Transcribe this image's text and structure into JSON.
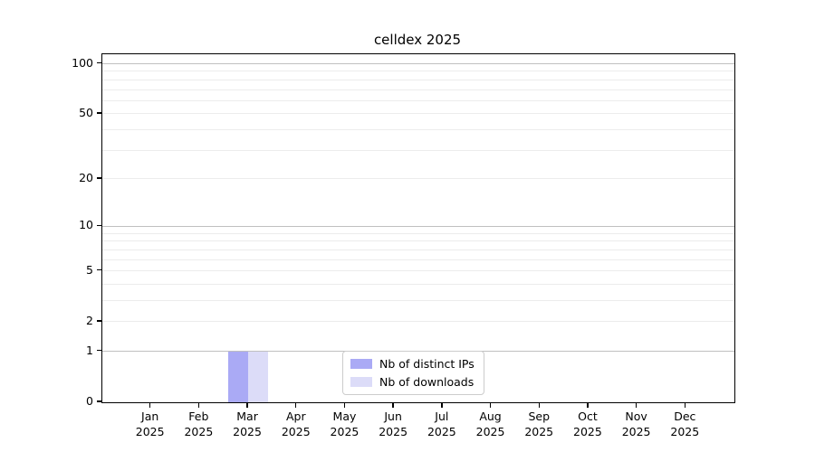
{
  "title": "celldex 2025",
  "colors": {
    "distinct_ips": "#aaaaf5",
    "downloads": "#dcdcf8",
    "grid_major": "#c0c0c0",
    "grid_minor": "#ececec",
    "axis": "#000000",
    "legend_border": "#cccccc",
    "background": "#ffffff"
  },
  "chart_data": {
    "type": "bar",
    "title": "celldex 2025",
    "xlabel": "",
    "ylabel": "",
    "scale": "log10(value+1)",
    "categories": [
      "Jan",
      "Feb",
      "Mar",
      "Apr",
      "May",
      "Jun",
      "Jul",
      "Aug",
      "Sep",
      "Oct",
      "Nov",
      "Dec"
    ],
    "category_year": "2025",
    "series": [
      {
        "name": "Nb of distinct IPs",
        "color": "#aaaaf5",
        "values": [
          0,
          0,
          1,
          0,
          0,
          0,
          0,
          0,
          0,
          0,
          0,
          0
        ]
      },
      {
        "name": "Nb of downloads",
        "color": "#dcdcf8",
        "values": [
          0,
          0,
          1,
          0,
          0,
          0,
          0,
          0,
          0,
          0,
          0,
          0
        ]
      }
    ],
    "yticks": [
      0,
      1,
      2,
      5,
      10,
      20,
      50,
      100
    ],
    "ylim": [
      0,
      114
    ],
    "grid": {
      "emphasized": [
        1,
        10,
        100
      ],
      "light": [
        2,
        3,
        4,
        5,
        6,
        7,
        8,
        9,
        20,
        30,
        40,
        50,
        60,
        70,
        80,
        90
      ]
    },
    "legend_position": "bottom-center",
    "legend": [
      "Nb of distinct IPs",
      "Nb of downloads"
    ]
  }
}
